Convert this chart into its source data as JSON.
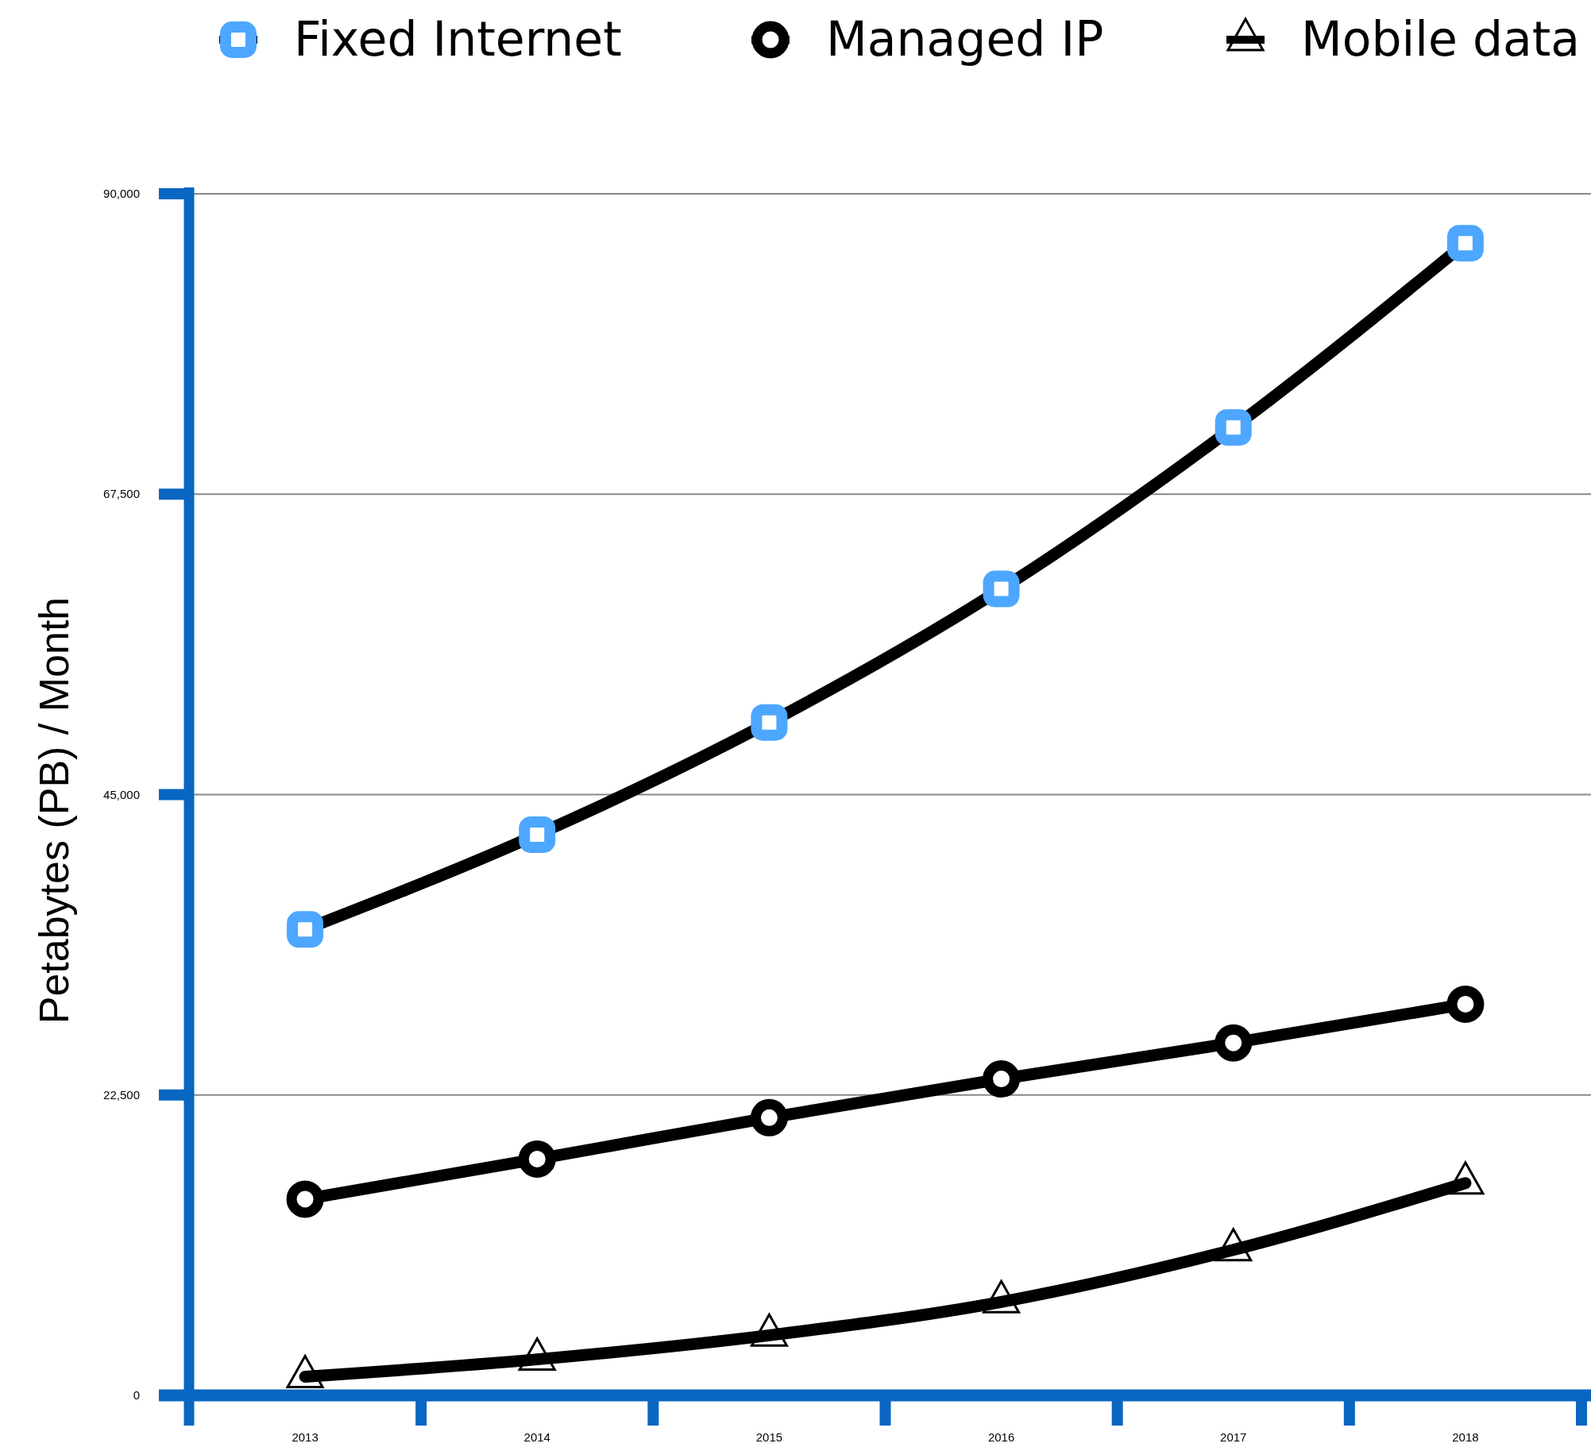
{
  "chart_data": {
    "type": "line",
    "ylabel": "Petabytes (PB) / Month",
    "categories": [
      "2013",
      "2014",
      "2015",
      "2016",
      "2017",
      "2018"
    ],
    "series": [
      {
        "name": "Fixed Internet",
        "color": "#000000",
        "marker": "square",
        "colors": [
          "#4da6ff",
          "#4da6ff",
          "#4da6ff",
          "#4da6ff",
          "#4da6ff",
          "#4da6ff"
        ],
        "values": [
          34900,
          42000,
          50400,
          60400,
          72500,
          86300
        ]
      },
      {
        "name": "Managed IP",
        "color": "#000000",
        "marker": "circle",
        "values": [
          14700,
          17700,
          20800,
          23700,
          26400,
          29300
        ]
      },
      {
        "name": "Mobile data",
        "color": "#000000",
        "marker": "triangle",
        "values": [
          1400,
          2700,
          4500,
          7000,
          10900,
          15900
        ]
      }
    ],
    "ylim": [
      0,
      90000
    ],
    "yticks": [
      0,
      {
        "value": 22500,
        "label": "22,500"
      },
      {
        "value": 45000,
        "label": "45,000"
      },
      {
        "value": 67500,
        "label": "67,500"
      },
      {
        "value": 90000,
        "label": "90,000"
      }
    ],
    "grid": "y",
    "legend": "top",
    "line_style": "solid"
  }
}
